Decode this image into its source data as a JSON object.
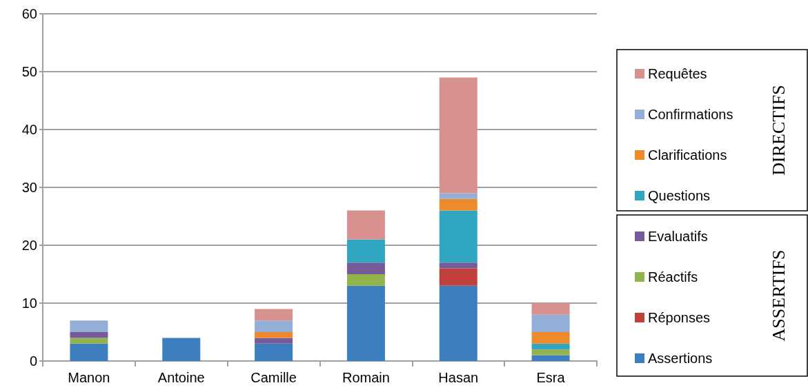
{
  "chart_data": {
    "type": "bar",
    "stacked": true,
    "categories": [
      "Manon",
      "Antoine",
      "Camille",
      "Romain",
      "Hasan",
      "Esra"
    ],
    "series": [
      {
        "name": "Assertions",
        "color": "#3d7ebf",
        "values": [
          3,
          4,
          3,
          13,
          13,
          1
        ]
      },
      {
        "name": "Réponses",
        "color": "#c0403c",
        "values": [
          0,
          0,
          0,
          0,
          3,
          0
        ]
      },
      {
        "name": "Réactifs",
        "color": "#93b44c",
        "values": [
          1,
          0,
          0,
          2,
          0,
          1
        ]
      },
      {
        "name": "Evaluatifs",
        "color": "#765a9a",
        "values": [
          1,
          0,
          1,
          2,
          1,
          0
        ]
      },
      {
        "name": "Questions",
        "color": "#30a6c0",
        "values": [
          0,
          0,
          0,
          4,
          9,
          1
        ]
      },
      {
        "name": "Clarifications",
        "color": "#ef8a2c",
        "values": [
          0,
          0,
          1,
          0,
          2,
          2
        ]
      },
      {
        "name": "Confirmations",
        "color": "#93afd8",
        "values": [
          2,
          0,
          2,
          0,
          1,
          3
        ]
      },
      {
        "name": "Requêtes",
        "color": "#d8918f",
        "values": [
          0,
          0,
          2,
          5,
          20,
          2
        ]
      }
    ],
    "ylim": [
      0,
      60
    ],
    "yticks": [
      0,
      10,
      20,
      30,
      40,
      50,
      60
    ],
    "grid": "y",
    "legend": "right",
    "annotations": [
      "DIRECTIFS",
      "ASSERTIFS"
    ]
  }
}
